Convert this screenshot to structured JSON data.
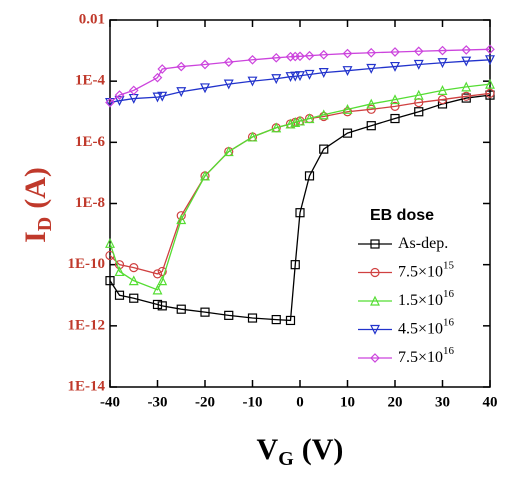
{
  "chart_data": {
    "type": "line",
    "yscale": "log",
    "ylabel": "I",
    "ylabel_sub": "D",
    "ylabel_unit": "(A)",
    "xlabel": "V",
    "xlabel_sub": "G",
    "xlabel_unit": "(V)",
    "legend_title": "EB dose",
    "legend": "lower right",
    "xlim": [
      -40,
      40
    ],
    "xticks": [
      -40,
      -30,
      -20,
      -10,
      0,
      10,
      20,
      30,
      40
    ],
    "ylim": [
      1e-14,
      0.01
    ],
    "yticks": [
      {
        "value": 1e-14,
        "label": "1E-14"
      },
      {
        "value": 1e-12,
        "label": "1E-12"
      },
      {
        "value": 1e-10,
        "label": "1E-10"
      },
      {
        "value": 1e-08,
        "label": "1E-8"
      },
      {
        "value": 1e-06,
        "label": "1E-6"
      },
      {
        "value": 0.0001,
        "label": "1E-4"
      },
      0.01
    ],
    "x": [
      -40,
      -38,
      -35,
      -30,
      -29,
      -25,
      -20,
      -15,
      -10,
      -5,
      -2,
      -1,
      0,
      2,
      5,
      10,
      15,
      20,
      25,
      30,
      35,
      40
    ],
    "series": [
      {
        "name": "As-dep.",
        "marker": "square",
        "color": "#000000",
        "values": [
          3e-11,
          1e-11,
          8e-12,
          5e-12,
          4.5e-12,
          3.5e-12,
          2.8e-12,
          2.2e-12,
          1.8e-12,
          1.6e-12,
          1.5e-12,
          1e-10,
          5e-09,
          8e-08,
          6e-07,
          2e-06,
          3.5e-06,
          6e-06,
          1e-05,
          1.8e-05,
          2.8e-05,
          3.5e-05
        ]
      },
      {
        "name": "7.5×10",
        "name_sup": "15",
        "marker": "circle",
        "color": "#d04040",
        "values": [
          2e-10,
          1e-10,
          8e-11,
          5e-11,
          6e-11,
          4e-09,
          8e-08,
          5e-07,
          1.5e-06,
          3e-06,
          4e-06,
          4.5e-06,
          5e-06,
          6e-06,
          7e-06,
          1e-05,
          1.2e-05,
          1.5e-05,
          2e-05,
          2.5e-05,
          3.2e-05,
          4e-05
        ]
      },
      {
        "name": "1.5×10",
        "name_sup": "16",
        "marker": "triangle-up",
        "color": "#55dd33",
        "values": [
          5e-10,
          6e-11,
          3e-11,
          1.5e-11,
          3e-11,
          3e-09,
          8e-08,
          5e-07,
          1.5e-06,
          3e-06,
          4e-06,
          4.5e-06,
          5e-06,
          6e-06,
          8e-06,
          1.2e-05,
          1.8e-05,
          2.5e-05,
          3.5e-05,
          5e-05,
          6.5e-05,
          8e-05
        ]
      },
      {
        "name": "4.5×10",
        "name_sup": "16",
        "marker": "triangle-down",
        "color": "#2233cc",
        "values": [
          2e-05,
          2.3e-05,
          2.7e-05,
          3e-05,
          3.2e-05,
          4.5e-05,
          6e-05,
          8e-05,
          0.0001,
          0.00012,
          0.00014,
          0.000145,
          0.00015,
          0.000165,
          0.00019,
          0.00022,
          0.00026,
          0.0003,
          0.00035,
          0.0004,
          0.00045,
          0.0005
        ]
      },
      {
        "name": "7.5×10",
        "name_sup": "16",
        "marker": "diamond",
        "color": "#cc44dd",
        "values": [
          2e-05,
          3.5e-05,
          5e-05,
          0.00013,
          0.00025,
          0.0003,
          0.00035,
          0.00042,
          0.0005,
          0.00058,
          0.00063,
          0.00064,
          0.00065,
          0.00068,
          0.00073,
          0.0008,
          0.00085,
          0.0009,
          0.00095,
          0.001,
          0.00105,
          0.0011
        ]
      }
    ]
  }
}
